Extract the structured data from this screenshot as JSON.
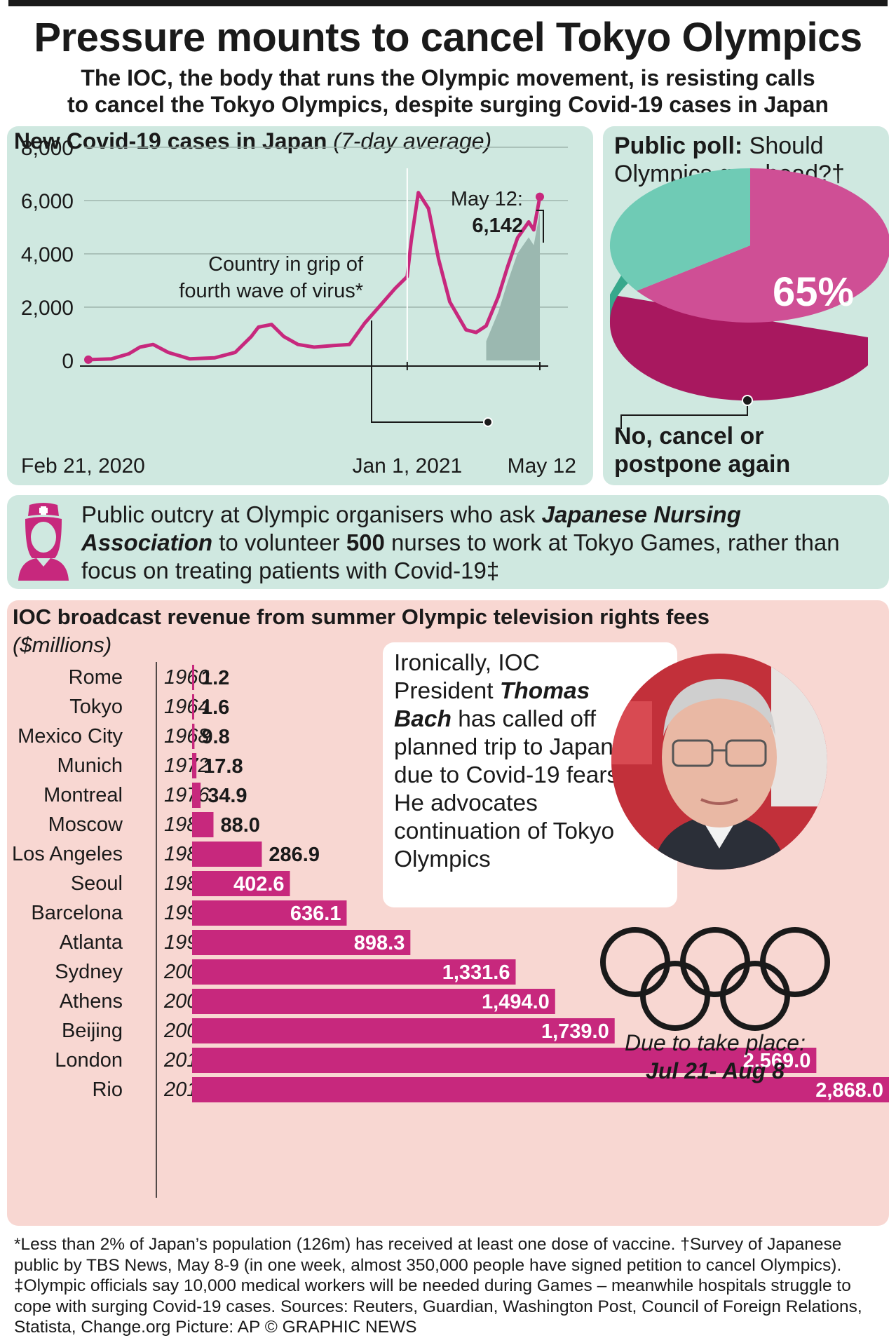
{
  "title": "Pressure mounts to cancel Tokyo Olympics",
  "subtitle_line1": "The IOC, the body that runs the Olympic movement, is resisting calls",
  "subtitle_line2": "to cancel the Tokyo Olympics, despite surging Covid-19 cases in Japan",
  "colors": {
    "magenta": "#c7287d",
    "teal": "#5fc3ab",
    "green_panel": "#cfe8e0",
    "pink_panel": "#f8d7d2",
    "shade": "#9bb8b0"
  },
  "chart_data": [
    {
      "type": "line",
      "title": "New Covid-19 cases in Japan",
      "subtitle": "(7-day average)",
      "ylim": [
        0,
        8000
      ],
      "yticks": [
        "8,000",
        "6,000",
        "4,000",
        "2,000",
        "0"
      ],
      "xtick_labels": [
        "Feb 21, 2020",
        "Jan 1, 2021",
        "May 12"
      ],
      "x_dates": [
        "2020-02-21",
        "2020-03-15",
        "2020-04-01",
        "2020-04-12",
        "2020-04-25",
        "2020-05-10",
        "2020-05-31",
        "2020-06-25",
        "2020-07-15",
        "2020-07-31",
        "2020-08-07",
        "2020-08-20",
        "2020-09-01",
        "2020-09-15",
        "2020-10-01",
        "2020-10-20",
        "2020-11-05",
        "2020-11-20",
        "2020-12-05",
        "2020-12-20",
        "2021-01-01",
        "2021-01-05",
        "2021-01-12",
        "2021-01-22",
        "2021-02-01",
        "2021-02-12",
        "2021-02-28",
        "2021-03-10",
        "2021-03-20",
        "2021-04-01",
        "2021-04-10",
        "2021-04-20",
        "2021-05-01",
        "2021-05-06",
        "2021-05-12"
      ],
      "values": [
        30,
        60,
        250,
        500,
        600,
        300,
        60,
        100,
        300,
        900,
        1250,
        1350,
        900,
        600,
        500,
        560,
        600,
        1400,
        2050,
        2700,
        3150,
        4500,
        6300,
        5700,
        3800,
        2200,
        1150,
        1050,
        1300,
        2400,
        3500,
        4600,
        5200,
        4900,
        6142
      ],
      "annotations": {
        "peak_label": "May 12:",
        "peak_value": "6,142",
        "wave_line1": "Country in grip of",
        "wave_line2": "fourth wave of virus*"
      }
    },
    {
      "type": "pie",
      "title_bold": "Public poll:",
      "title_rest": " Should Olympics go ahead?†",
      "slices": [
        {
          "name": "No, cancel or postpone again",
          "value": 65
        },
        {
          "name": "",
          "value": 35
        }
      ],
      "label": "65%"
    },
    {
      "type": "bar",
      "title": "IOC broadcast revenue from summer Olympic television rights fees",
      "unit": "($millions)",
      "categories": [
        "Rome",
        "Tokyo",
        "Mexico City",
        "Munich",
        "Montreal",
        "Moscow",
        "Los Angeles",
        "Seoul",
        "Barcelona",
        "Atlanta",
        "Sydney",
        "Athens",
        "Beijing",
        "London",
        "Rio"
      ],
      "years": [
        "1960",
        "1964",
        "1968",
        "1972",
        "1976",
        "1980",
        "1984",
        "1988",
        "1992",
        "1996",
        "2000",
        "2004",
        "2008",
        "2012",
        "2016"
      ],
      "values": [
        1.2,
        1.6,
        9.8,
        17.8,
        34.9,
        88.0,
        286.9,
        402.6,
        636.1,
        898.3,
        1331.6,
        1494.0,
        1739.0,
        2569.0,
        2868.0
      ],
      "value_labels": [
        "1.2",
        "1.6",
        "9.8",
        "17.8",
        "34.9",
        "88.0",
        "286.9",
        "402.6",
        "636.1",
        "898.3",
        "1,331.6",
        "1,494.0",
        "1,739.0",
        "2,569.0",
        "2,868.0"
      ]
    }
  ],
  "nurse": {
    "text1": "Public outcry at Olympic organisers who ask ",
    "org": "Japanese Nursing Association",
    "text2": " to volunteer ",
    "count": "500",
    "text3": " nurses to work at Tokyo Games, rather than focus on treating patients with Covid-19‡"
  },
  "bach": {
    "t1": "Ironically, IOC President ",
    "name": "Thomas Bach",
    "t2": " has called off planned trip to Japan due to Covid-19 fears. He advocates continuation of Tokyo Olympics"
  },
  "olympics": {
    "line1": "Due to take place:",
    "line2": "Jul 21- Aug 8"
  },
  "footnote": "*Less than 2% of Japan’s population (126m) has received at least one dose of vaccine. †Survey of Japanese public by TBS News, May 8-9 (in one week, almost 350,000 people have signed petition to cancel Olympics). ‡Olympic officials say 10,000 medical workers will be needed during Games – meanwhile hospitals struggle to cope with surging Covid-19 cases. Sources: Reuters, Guardian, Washington Post, Council of Foreign Relations, Statista, Change.org  Picture: AP   © GRAPHIC NEWS"
}
